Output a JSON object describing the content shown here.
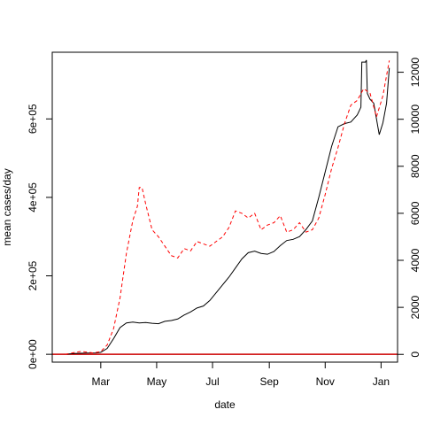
{
  "chart_data": {
    "type": "line",
    "title": "",
    "xlabel": "date",
    "ylabel": "mean cases/day",
    "ylabel_right": "",
    "grid": false,
    "legend": "none",
    "x_ticks": [
      {
        "date": "2020-03-01",
        "label": "Mar"
      },
      {
        "date": "2020-05-01",
        "label": "May"
      },
      {
        "date": "2020-07-01",
        "label": "Jul"
      },
      {
        "date": "2020-09-01",
        "label": "Sep"
      },
      {
        "date": "2020-11-01",
        "label": "Nov"
      },
      {
        "date": "2021-01-01",
        "label": "Jan"
      }
    ],
    "xlim": [
      "2020-01-08",
      "2021-01-19"
    ],
    "y_left": {
      "ylim": [
        -20000,
        770000
      ],
      "ticks": [
        0,
        200000,
        400000,
        600000
      ],
      "tick_labels": [
        "0e+00",
        "2e+05",
        "4e+05",
        "6e+05"
      ]
    },
    "y_right": {
      "ylim": [
        -330,
        12850
      ],
      "ticks": [
        0,
        2000,
        4000,
        6000,
        8000,
        10000,
        12000
      ],
      "tick_labels": [
        "0",
        "2000",
        "4000",
        "6000",
        "8000",
        "10000",
        "12000"
      ]
    },
    "reference_line": {
      "axis": "left",
      "y": 0,
      "color": "#cc0000"
    },
    "series": [
      {
        "axis": "left",
        "color": "#000000",
        "style": "solid",
        "points": [
          [
            "2020-01-22",
            0
          ],
          [
            "2020-02-01",
            2000
          ],
          [
            "2020-02-15",
            3000
          ],
          [
            "2020-02-25",
            3500
          ],
          [
            "2020-03-01",
            5000
          ],
          [
            "2020-03-08",
            15000
          ],
          [
            "2020-03-15",
            40000
          ],
          [
            "2020-03-22",
            68000
          ],
          [
            "2020-03-29",
            80000
          ],
          [
            "2020-04-05",
            82000
          ],
          [
            "2020-04-12",
            80000
          ],
          [
            "2020-04-19",
            81000
          ],
          [
            "2020-04-26",
            79000
          ],
          [
            "2020-05-03",
            78000
          ],
          [
            "2020-05-10",
            84000
          ],
          [
            "2020-05-17",
            86000
          ],
          [
            "2020-05-24",
            90000
          ],
          [
            "2020-05-31",
            100000
          ],
          [
            "2020-06-07",
            108000
          ],
          [
            "2020-06-14",
            118000
          ],
          [
            "2020-06-21",
            123000
          ],
          [
            "2020-06-28",
            137000
          ],
          [
            "2020-07-05",
            157000
          ],
          [
            "2020-07-12",
            177000
          ],
          [
            "2020-07-19",
            197000
          ],
          [
            "2020-07-26",
            220000
          ],
          [
            "2020-08-02",
            243000
          ],
          [
            "2020-08-09",
            259000
          ],
          [
            "2020-08-16",
            263000
          ],
          [
            "2020-08-23",
            257000
          ],
          [
            "2020-08-30",
            255000
          ],
          [
            "2020-09-06",
            262000
          ],
          [
            "2020-09-13",
            277000
          ],
          [
            "2020-09-20",
            290000
          ],
          [
            "2020-09-27",
            293000
          ],
          [
            "2020-10-04",
            300000
          ],
          [
            "2020-10-11",
            318000
          ],
          [
            "2020-10-18",
            340000
          ],
          [
            "2020-10-25",
            400000
          ],
          [
            "2020-11-01",
            465000
          ],
          [
            "2020-11-08",
            530000
          ],
          [
            "2020-11-15",
            580000
          ],
          [
            "2020-11-22",
            588000
          ],
          [
            "2020-11-29",
            592000
          ],
          [
            "2020-12-06",
            610000
          ],
          [
            "2020-12-10",
            630000
          ],
          [
            "2020-12-11",
            745000
          ],
          [
            "2020-12-15",
            745000
          ],
          [
            "2020-12-16",
            750000
          ],
          [
            "2020-12-17",
            665000
          ],
          [
            "2020-12-20",
            650000
          ],
          [
            "2020-12-24",
            640000
          ],
          [
            "2020-12-27",
            600000
          ],
          [
            "2020-12-30",
            560000
          ],
          [
            "2021-01-03",
            590000
          ],
          [
            "2021-01-07",
            640000
          ],
          [
            "2021-01-10",
            730000
          ]
        ]
      },
      {
        "axis": "right",
        "color": "#ff0000",
        "style": "dashed",
        "points": [
          [
            "2020-01-22",
            0
          ],
          [
            "2020-02-01",
            80
          ],
          [
            "2020-02-08",
            120
          ],
          [
            "2020-02-15",
            100
          ],
          [
            "2020-02-22",
            60
          ],
          [
            "2020-03-01",
            120
          ],
          [
            "2020-03-08",
            400
          ],
          [
            "2020-03-15",
            1100
          ],
          [
            "2020-03-22",
            2400
          ],
          [
            "2020-03-29",
            4300
          ],
          [
            "2020-04-05",
            5700
          ],
          [
            "2020-04-10",
            6300
          ],
          [
            "2020-04-12",
            7100
          ],
          [
            "2020-04-15",
            7100
          ],
          [
            "2020-04-19",
            6400
          ],
          [
            "2020-04-26",
            5300
          ],
          [
            "2020-05-03",
            5000
          ],
          [
            "2020-05-10",
            4600
          ],
          [
            "2020-05-17",
            4200
          ],
          [
            "2020-05-24",
            4100
          ],
          [
            "2020-05-31",
            4500
          ],
          [
            "2020-06-07",
            4400
          ],
          [
            "2020-06-14",
            4800
          ],
          [
            "2020-06-21",
            4700
          ],
          [
            "2020-06-28",
            4600
          ],
          [
            "2020-07-05",
            4800
          ],
          [
            "2020-07-12",
            5000
          ],
          [
            "2020-07-19",
            5400
          ],
          [
            "2020-07-26",
            6100
          ],
          [
            "2020-08-02",
            6000
          ],
          [
            "2020-08-09",
            5800
          ],
          [
            "2020-08-16",
            6000
          ],
          [
            "2020-08-23",
            5300
          ],
          [
            "2020-08-30",
            5500
          ],
          [
            "2020-09-06",
            5600
          ],
          [
            "2020-09-13",
            5900
          ],
          [
            "2020-09-20",
            5200
          ],
          [
            "2020-09-27",
            5300
          ],
          [
            "2020-10-04",
            5600
          ],
          [
            "2020-10-11",
            5200
          ],
          [
            "2020-10-18",
            5300
          ],
          [
            "2020-10-25",
            5800
          ],
          [
            "2020-11-01",
            6800
          ],
          [
            "2020-11-08",
            7900
          ],
          [
            "2020-11-15",
            8800
          ],
          [
            "2020-11-22",
            9800
          ],
          [
            "2020-11-29",
            10600
          ],
          [
            "2020-12-06",
            10800
          ],
          [
            "2020-12-13",
            11300
          ],
          [
            "2020-12-20",
            11100
          ],
          [
            "2020-12-27",
            10100
          ],
          [
            "2021-01-03",
            11000
          ],
          [
            "2021-01-10",
            12500
          ]
        ]
      }
    ]
  }
}
